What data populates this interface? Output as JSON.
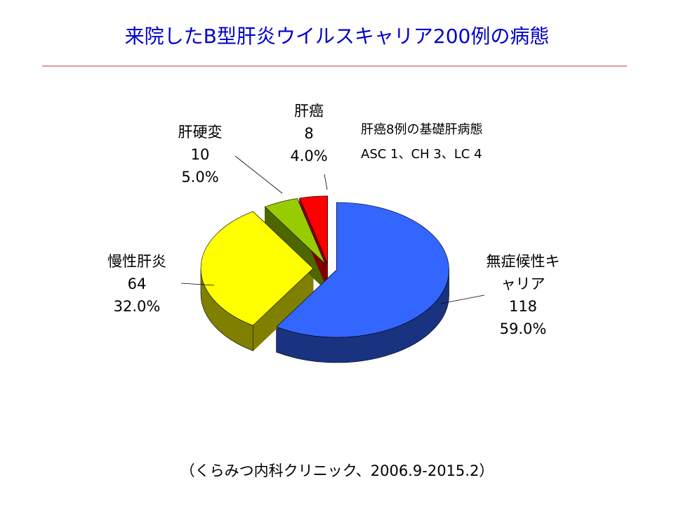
{
  "chart_data": {
    "type": "pie3d",
    "title": "来院したB型肝炎ウイルスキャリア200例の病態",
    "categories": [
      "無症候性キャリア",
      "慢性肝炎",
      "肝硬変",
      "肝癌"
    ],
    "values": [
      118,
      64,
      10,
      8
    ],
    "percent_labels": [
      "59.0%",
      "32.0%",
      "5.0%",
      "4.0%"
    ],
    "colors": [
      "#3366ff",
      "#ffff00",
      "#99cc00",
      "#ff0000"
    ],
    "annotation": [
      "肝癌8例の基礎肝病態",
      "ASC 1、CH 3、LC 4"
    ],
    "footnote": "（くらみつ内科クリニック、2006.9-2015.2）"
  }
}
